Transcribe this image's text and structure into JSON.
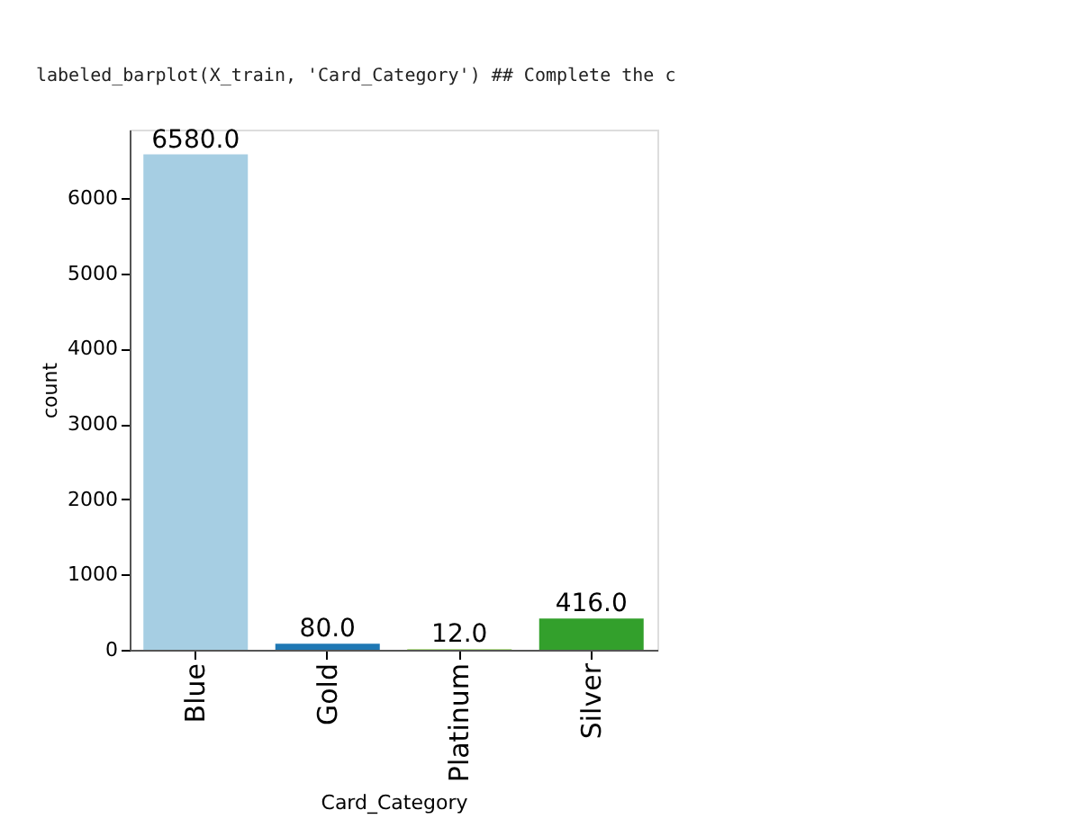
{
  "chart_data": {
    "type": "bar",
    "categories": [
      "Blue",
      "Gold",
      "Platinum",
      "Silver"
    ],
    "values": [
      6580,
      80,
      12,
      416
    ],
    "colors": [
      "#a6cee3",
      "#1f78b4",
      "#b2df8a",
      "#33a02c"
    ],
    "value_labels": [
      "6580.0",
      "80.0",
      "12.0",
      "416.0"
    ],
    "xlabel": "Card_Category",
    "ylabel": "count",
    "ylim": [
      0,
      6909
    ],
    "yticks": [
      0,
      1000,
      2000,
      3000,
      4000,
      5000,
      6000
    ],
    "grid": false,
    "legend": false,
    "annotations": [
      "labeled_barplot(X_train, 'Card_Category') ## Complete the c"
    ]
  }
}
